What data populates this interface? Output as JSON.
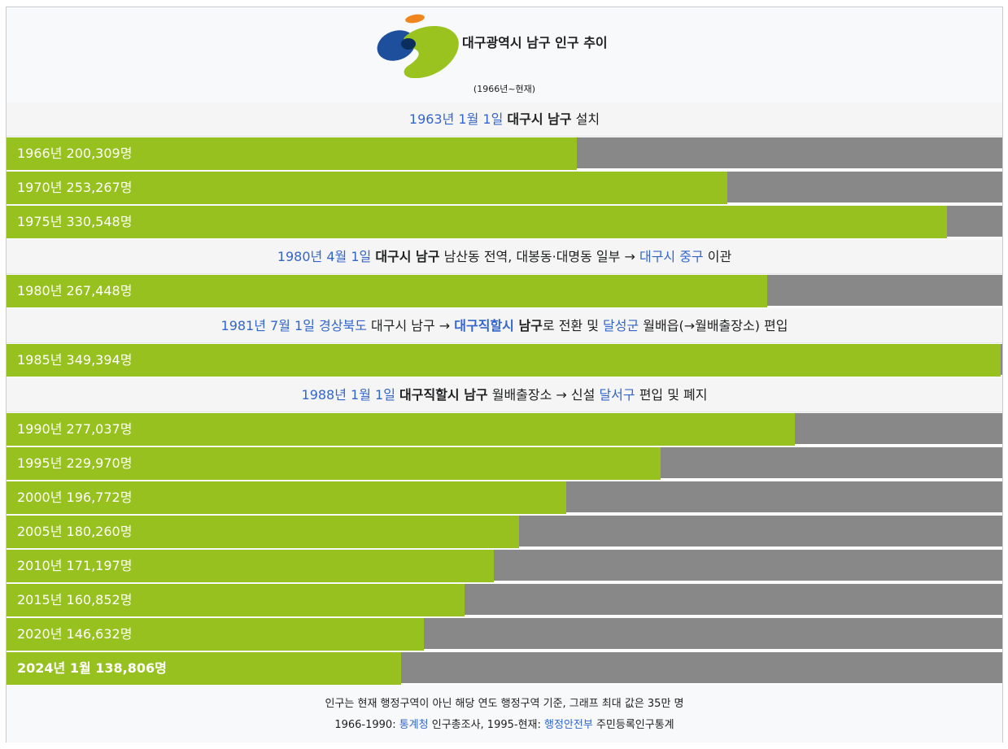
{
  "header": {
    "title": "대구광역시 남구 인구 추이",
    "subtitle": "(1966년~현재)"
  },
  "colors": {
    "bar_fill": "#97c11f",
    "bar_remainder": "#888888",
    "link": "#3366cc",
    "logo_blue": "#1d4f9c",
    "logo_green": "#9bc31f",
    "logo_orange": "#f0871e"
  },
  "events": {
    "e1963": {
      "date": "1963년 1월 1일",
      "place": "대구시 남구",
      "rest": " 설치"
    },
    "e1980": {
      "date": "1980년 4월 1일",
      "place": "대구시 남구",
      "mid": " 남산동 전역, 대봉동·대명동 일부 → ",
      "link": "대구시 중구",
      "rest": " 이관"
    },
    "e1981": {
      "date": "1981년 7월 1일",
      "province": "경상북도",
      "mid1": " 대구시 남구 → ",
      "city": "대구직할시",
      "gu": " 남구",
      "mid2": "로 전환 및 ",
      "county": "달성군",
      "rest": " 월배읍(→월배출장소) 편입"
    },
    "e1988": {
      "date": "1988년 1월 1일",
      "place": "대구직할시 남구",
      "mid": " 월배출장소 → 신설 ",
      "link": "달서구",
      "rest": " 편입 및 폐지"
    }
  },
  "chart_data": {
    "type": "bar",
    "orientation": "horizontal",
    "max": 350000,
    "unit": "명",
    "bars": [
      {
        "label": "1966년 200,309명",
        "year": 1966,
        "value": 200309
      },
      {
        "label": "1970년 253,267명",
        "year": 1970,
        "value": 253267
      },
      {
        "label": "1975년 330,548명",
        "year": 1975,
        "value": 330548
      },
      {
        "label": "1980년 267,448명",
        "year": 1980,
        "value": 267448
      },
      {
        "label": "1985년 349,394명",
        "year": 1985,
        "value": 349394
      },
      {
        "label": "1990년 277,037명",
        "year": 1990,
        "value": 277037
      },
      {
        "label": "1995년 229,970명",
        "year": 1995,
        "value": 229970
      },
      {
        "label": "2000년 196,772명",
        "year": 2000,
        "value": 196772
      },
      {
        "label": "2005년 180,260명",
        "year": 2005,
        "value": 180260
      },
      {
        "label": "2010년 171,197명",
        "year": 2010,
        "value": 171197
      },
      {
        "label": "2015년 160,852명",
        "year": 2015,
        "value": 160852
      },
      {
        "label": "2020년 146,632명",
        "year": 2020,
        "value": 146632
      },
      {
        "label": "2024년 1월 138,806명",
        "year": 2024,
        "value": 138806,
        "bold": true
      }
    ]
  },
  "footer": {
    "note": "인구는 현재 행정구역이 아닌 해당 연도 행정구역 기준, 그래프 최대 값은 35만 명",
    "src_a": "1966-1990: ",
    "src_link1": "통계청",
    "src_b": " 인구총조사, 1995-현재: ",
    "src_link2": "행정안전부",
    "src_c": " 주민등록인구통계"
  }
}
